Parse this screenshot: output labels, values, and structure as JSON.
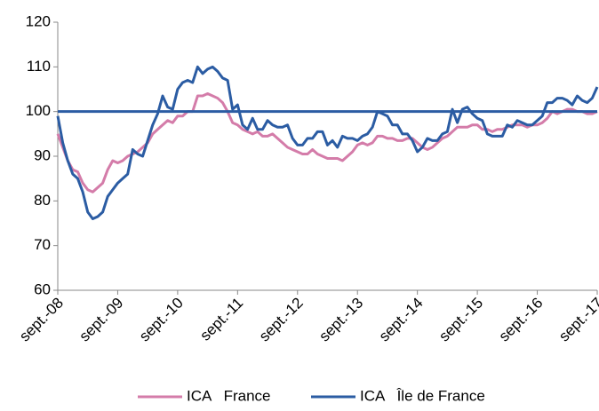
{
  "chart_data": {
    "type": "line",
    "categories": [
      "sept.-08",
      null,
      null,
      null,
      null,
      null,
      null,
      null,
      null,
      null,
      null,
      null,
      "sept.-09",
      null,
      null,
      null,
      null,
      null,
      null,
      null,
      null,
      null,
      null,
      null,
      "sept.-10",
      null,
      null,
      null,
      null,
      null,
      null,
      null,
      null,
      null,
      null,
      null,
      "sept.-11",
      null,
      null,
      null,
      null,
      null,
      null,
      null,
      null,
      null,
      null,
      null,
      "sept.-12",
      null,
      null,
      null,
      null,
      null,
      null,
      null,
      null,
      null,
      null,
      null,
      "sept.-13",
      null,
      null,
      null,
      null,
      null,
      null,
      null,
      null,
      null,
      null,
      null,
      "sept.-14",
      null,
      null,
      null,
      null,
      null,
      null,
      null,
      null,
      null,
      null,
      null,
      "sept.-15",
      null,
      null,
      null,
      null,
      null,
      null,
      null,
      null,
      null,
      null,
      null,
      "sept.-16",
      null,
      null,
      null,
      null,
      null,
      null,
      null,
      null,
      null,
      null,
      null,
      "sept.-17"
    ],
    "series": [
      {
        "name": "ICA   France",
        "color": "#d47ca9",
        "values": [
          95,
          92,
          89,
          87,
          86.5,
          84,
          82.5,
          82,
          83,
          84,
          87,
          89,
          88.5,
          89,
          90,
          90.5,
          91,
          92,
          93,
          95,
          96,
          97,
          98,
          97.5,
          99,
          99,
          100,
          100,
          103.5,
          103.5,
          104,
          103.5,
          103,
          102,
          100,
          97.5,
          97,
          96,
          95.5,
          95,
          95.5,
          94.5,
          94.5,
          95,
          94,
          93,
          92,
          91.5,
          91,
          90.5,
          90.5,
          91.5,
          90.5,
          90,
          89.5,
          89.5,
          89.5,
          89,
          90,
          91,
          92.5,
          93,
          92.5,
          93,
          94.5,
          94.5,
          94,
          94,
          93.5,
          93.5,
          94,
          94,
          93,
          92,
          91.5,
          92,
          93,
          94,
          94.5,
          95.5,
          96.5,
          96.5,
          96.5,
          97,
          97,
          96,
          96,
          95.5,
          96,
          96,
          96.5,
          97,
          97,
          97,
          96.5,
          97,
          97,
          97.5,
          98.5,
          100,
          99.5,
          100,
          100.5,
          100.5,
          100,
          100,
          99.5,
          99.5,
          100
        ]
      },
      {
        "name": "ICA   Île de France",
        "color": "#2b5ca3",
        "values": [
          99,
          93,
          89,
          86,
          85,
          82,
          77.5,
          76,
          76.5,
          77.5,
          81,
          82.5,
          84,
          85,
          86,
          91.5,
          90.5,
          90,
          93.5,
          97,
          99.5,
          103.5,
          101,
          100.5,
          105,
          106.5,
          107,
          106.5,
          110,
          108.5,
          109.5,
          110,
          109,
          107.5,
          107,
          100.5,
          101.5,
          97,
          96,
          98.5,
          96,
          96,
          98,
          97,
          96.5,
          96.5,
          97,
          94,
          92.5,
          92.5,
          94,
          94,
          95.5,
          95.5,
          92.5,
          93.5,
          92,
          94.5,
          94,
          94,
          93.5,
          94.5,
          95,
          96.5,
          100,
          99.5,
          99,
          97,
          97,
          95,
          95,
          93.5,
          91,
          92,
          94,
          93.5,
          93.5,
          95,
          95.5,
          100.5,
          97.5,
          100.5,
          101,
          99.5,
          98.5,
          98,
          95,
          94.5,
          94.5,
          94.5,
          97,
          96.5,
          98,
          97.5,
          97,
          97,
          98,
          99,
          102,
          102,
          103,
          103,
          102.5,
          101.5,
          103.5,
          102.5,
          102,
          103,
          105.5
        ]
      }
    ],
    "reference_line": 100,
    "reference_color": "#2b5ca3",
    "ylim": [
      60,
      120
    ],
    "yticks": [
      60,
      70,
      80,
      90,
      100,
      110,
      120
    ],
    "grid": false,
    "legend": "bottom"
  }
}
